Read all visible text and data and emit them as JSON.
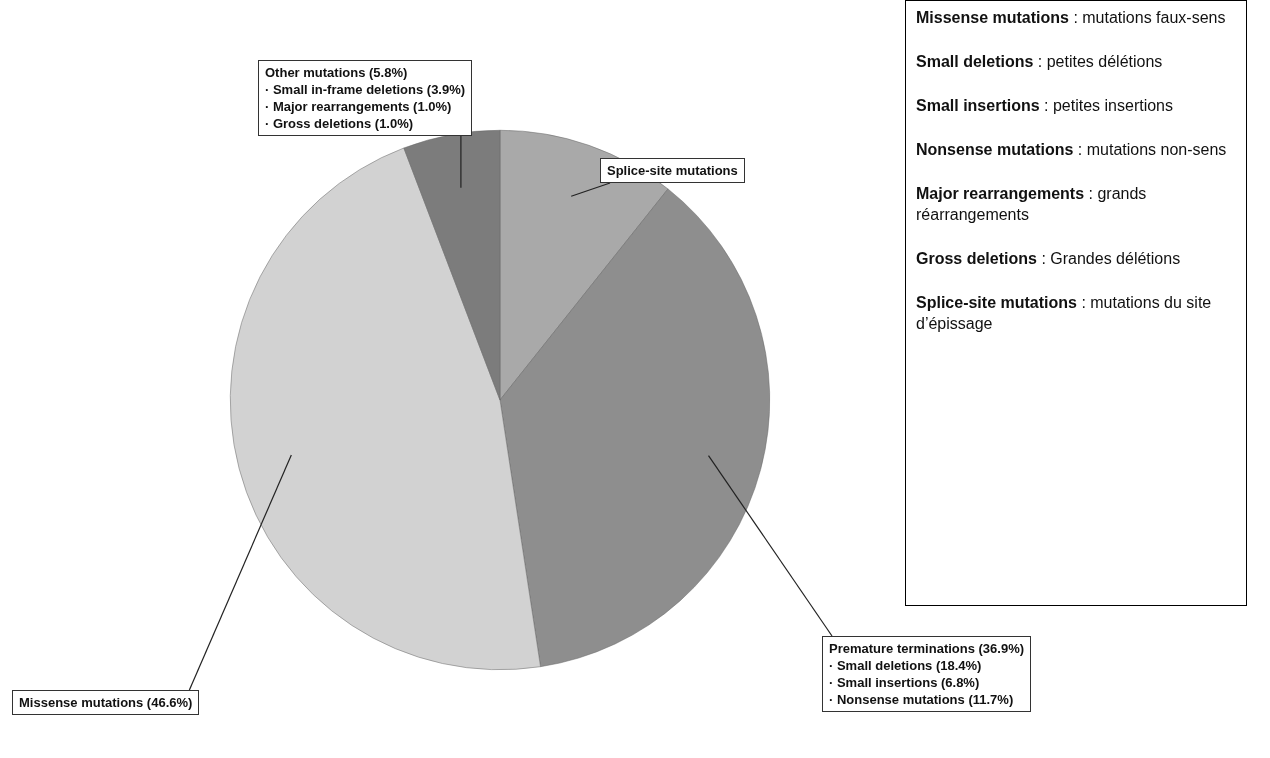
{
  "chart_data": {
    "type": "pie",
    "categories": [
      "Splice-site mutations",
      "Premature terminations (36.9%)\n· Small deletions (18.4%)\n· Small insertions (6.8%)\n· Nonsense mutations (11.7%)",
      "Missense mutations (46.6%)",
      "Other mutations (5.8%)\n· Small in-frame deletions (3.9%)\n· Major rearrangements (1.0%)\n· Gross deletions (1.0%)"
    ],
    "values": [
      10.7,
      36.9,
      46.6,
      5.8
    ],
    "colors": [
      "#a9a9a9",
      "#8e8e8e",
      "#d2d2d2",
      "#7c7c7c"
    ],
    "legend": false,
    "annotations": [
      "Missense mutations : mutations faux-sens",
      "Small deletions : petites délétions",
      "Small insertions : petites insertions",
      "Nonsense mutations : mutations non-sens",
      "Major rearrangements : grands réarrangements",
      "Gross deletions : Grandes délétions",
      "Splice-site mutations : mutations du site d’épissage"
    ]
  }
}
